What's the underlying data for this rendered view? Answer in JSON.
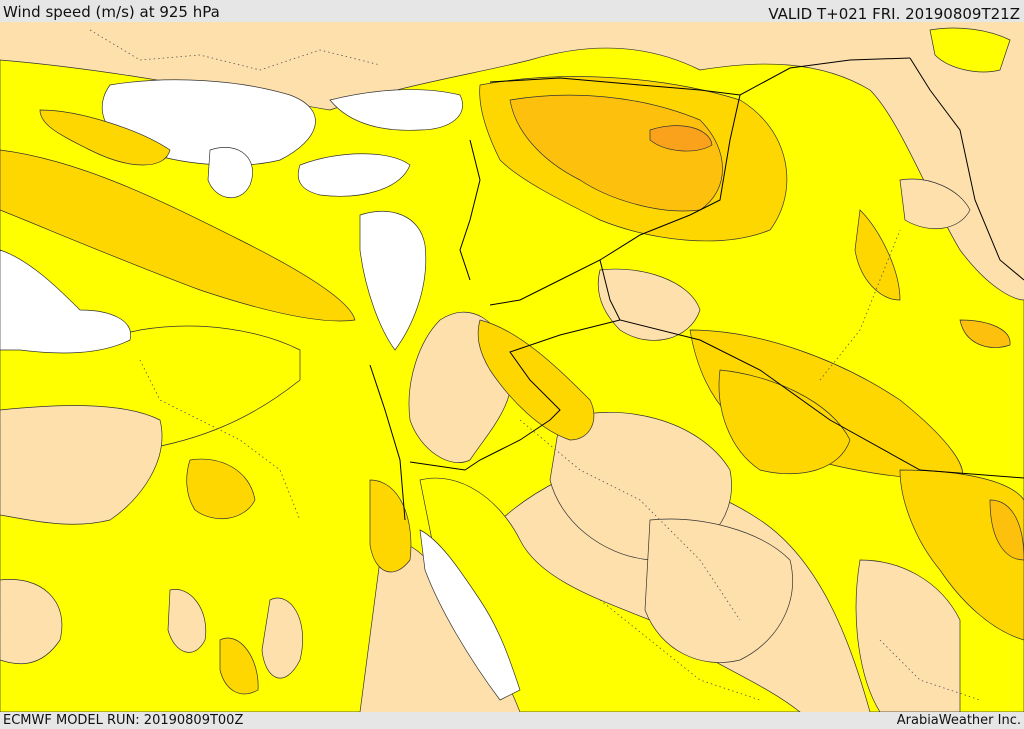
{
  "header": {
    "title": "Wind speed (m/s) at 925 hPa",
    "valid": "VALID T+021 FRI. 20190809T21Z"
  },
  "footer": {
    "model_run": "ECMWF MODEL RUN: 20190809T00Z",
    "credit": "ArabiaWeather Inc."
  },
  "colors": {
    "band_lowest": "#ffffff",
    "band_low": "#fee0ac",
    "band_mid": "#ffff00",
    "band_high": "#fed700",
    "band_higher": "#fdc10d",
    "band_highest": "#fba21d",
    "contour": "#333333",
    "border": "#000000"
  }
}
